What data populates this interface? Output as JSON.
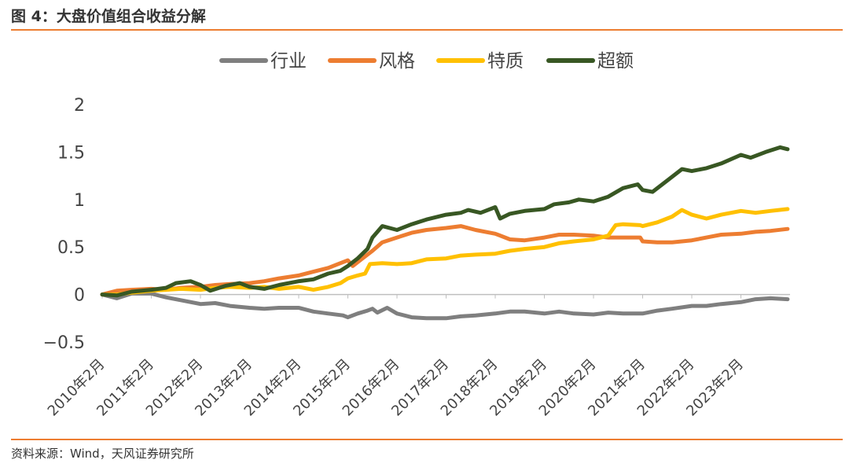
{
  "title": "图 4：大盘价值组合收益分解",
  "source": "资料来源：Wind，天风证券研究所",
  "chart_data": {
    "type": "line",
    "title": "图 4：大盘价值组合收益分解",
    "ylim": [
      -0.5,
      2
    ],
    "yticks": [
      -0.5,
      0,
      0.5,
      1,
      1.5,
      2
    ],
    "ytick_labels": [
      "−0.5",
      "0",
      "0.5",
      "1",
      "1.5",
      "2"
    ],
    "xlim": [
      2010.0,
      2024.0
    ],
    "xticks": [
      2010,
      2011,
      2012,
      2013,
      2014,
      2015,
      2016,
      2017,
      2018,
      2019,
      2020,
      2021,
      2022,
      2023
    ],
    "xtick_labels": [
      "2010年2月",
      "2011年2月",
      "2012年2月",
      "2013年2月",
      "2014年2月",
      "2015年2月",
      "2016年2月",
      "2017年2月",
      "2018年2月",
      "2019年2月",
      "2020年2月",
      "2021年2月",
      "2022年2月",
      "2023年2月"
    ],
    "legend_position": "top",
    "grid": false,
    "series": [
      {
        "name": "行业",
        "color": "#7F7F7F",
        "x": [
          2010.0,
          2010.3,
          2010.6,
          2011.0,
          2011.3,
          2011.6,
          2012.0,
          2012.3,
          2012.6,
          2013.0,
          2013.3,
          2013.6,
          2014.0,
          2014.3,
          2014.6,
          2014.9,
          2015.0,
          2015.2,
          2015.4,
          2015.5,
          2015.6,
          2015.8,
          2016.0,
          2016.3,
          2016.6,
          2017.0,
          2017.3,
          2017.6,
          2018.0,
          2018.3,
          2018.6,
          2019.0,
          2019.3,
          2019.6,
          2020.0,
          2020.3,
          2020.6,
          2021.0,
          2021.3,
          2021.6,
          2022.0,
          2022.3,
          2022.6,
          2023.0,
          2023.3,
          2023.6,
          2023.95
        ],
        "y": [
          0.0,
          -0.04,
          0.01,
          0.01,
          -0.03,
          -0.06,
          -0.1,
          -0.09,
          -0.12,
          -0.14,
          -0.15,
          -0.14,
          -0.14,
          -0.18,
          -0.2,
          -0.22,
          -0.24,
          -0.2,
          -0.17,
          -0.15,
          -0.19,
          -0.14,
          -0.2,
          -0.24,
          -0.25,
          -0.25,
          -0.23,
          -0.22,
          -0.2,
          -0.18,
          -0.18,
          -0.2,
          -0.18,
          -0.2,
          -0.21,
          -0.19,
          -0.2,
          -0.2,
          -0.17,
          -0.15,
          -0.12,
          -0.12,
          -0.1,
          -0.08,
          -0.05,
          -0.04,
          -0.05
        ]
      },
      {
        "name": "风格",
        "color": "#ED7D31",
        "x": [
          2010.0,
          2010.3,
          2010.6,
          2011.0,
          2011.3,
          2011.6,
          2012.0,
          2012.3,
          2012.6,
          2013.0,
          2013.3,
          2013.6,
          2014.0,
          2014.3,
          2014.6,
          2014.85,
          2015.0,
          2015.1,
          2015.3,
          2015.5,
          2015.7,
          2016.0,
          2016.3,
          2016.6,
          2017.0,
          2017.3,
          2017.6,
          2018.0,
          2018.3,
          2018.6,
          2019.0,
          2019.3,
          2019.6,
          2020.0,
          2020.3,
          2020.6,
          2020.95,
          2021.0,
          2021.3,
          2021.6,
          2022.0,
          2022.3,
          2022.6,
          2023.0,
          2023.3,
          2023.6,
          2023.95
        ],
        "y": [
          0.0,
          0.04,
          0.05,
          0.06,
          0.05,
          0.07,
          0.08,
          0.1,
          0.11,
          0.12,
          0.14,
          0.17,
          0.2,
          0.24,
          0.28,
          0.33,
          0.36,
          0.3,
          0.38,
          0.46,
          0.55,
          0.6,
          0.65,
          0.68,
          0.7,
          0.72,
          0.68,
          0.64,
          0.58,
          0.57,
          0.6,
          0.63,
          0.63,
          0.62,
          0.6,
          0.6,
          0.6,
          0.56,
          0.55,
          0.55,
          0.57,
          0.6,
          0.63,
          0.64,
          0.66,
          0.67,
          0.69
        ]
      },
      {
        "name": "特质",
        "color": "#FFC000",
        "x": [
          2010.0,
          2010.3,
          2010.6,
          2011.0,
          2011.3,
          2011.6,
          2012.0,
          2012.3,
          2012.6,
          2013.0,
          2013.3,
          2013.6,
          2014.0,
          2014.3,
          2014.6,
          2014.85,
          2015.0,
          2015.2,
          2015.35,
          2015.45,
          2015.7,
          2016.0,
          2016.3,
          2016.6,
          2017.0,
          2017.3,
          2017.6,
          2018.0,
          2018.3,
          2018.6,
          2019.0,
          2019.3,
          2019.6,
          2020.0,
          2020.3,
          2020.45,
          2020.6,
          2020.95,
          2021.0,
          2021.3,
          2021.6,
          2021.8,
          2022.0,
          2022.3,
          2022.6,
          2023.0,
          2023.3,
          2023.6,
          2023.95
        ],
        "y": [
          0.0,
          0.0,
          0.02,
          0.04,
          0.05,
          0.06,
          0.05,
          0.07,
          0.08,
          0.07,
          0.08,
          0.06,
          0.08,
          0.05,
          0.08,
          0.12,
          0.17,
          0.2,
          0.22,
          0.32,
          0.33,
          0.32,
          0.33,
          0.37,
          0.38,
          0.41,
          0.42,
          0.43,
          0.46,
          0.48,
          0.5,
          0.54,
          0.56,
          0.58,
          0.62,
          0.73,
          0.74,
          0.73,
          0.72,
          0.76,
          0.82,
          0.89,
          0.84,
          0.8,
          0.84,
          0.88,
          0.86,
          0.88,
          0.9
        ]
      },
      {
        "name": "超额",
        "color": "#385723",
        "x": [
          2010.0,
          2010.3,
          2010.6,
          2011.0,
          2011.3,
          2011.5,
          2011.8,
          2012.0,
          2012.2,
          2012.5,
          2012.8,
          2013.0,
          2013.3,
          2013.6,
          2014.0,
          2014.3,
          2014.6,
          2014.85,
          2015.0,
          2015.2,
          2015.4,
          2015.5,
          2015.7,
          2015.85,
          2016.0,
          2016.3,
          2016.6,
          2017.0,
          2017.3,
          2017.45,
          2017.7,
          2018.0,
          2018.1,
          2018.3,
          2018.6,
          2019.0,
          2019.2,
          2019.5,
          2019.7,
          2020.0,
          2020.3,
          2020.6,
          2020.9,
          2021.0,
          2021.2,
          2021.5,
          2021.8,
          2022.0,
          2022.3,
          2022.6,
          2023.0,
          2023.2,
          2023.5,
          2023.8,
          2023.95
        ],
        "y": [
          0.0,
          -0.01,
          0.03,
          0.05,
          0.07,
          0.12,
          0.14,
          0.1,
          0.04,
          0.09,
          0.12,
          0.08,
          0.06,
          0.1,
          0.14,
          0.16,
          0.22,
          0.25,
          0.3,
          0.38,
          0.48,
          0.6,
          0.72,
          0.7,
          0.68,
          0.74,
          0.79,
          0.84,
          0.86,
          0.89,
          0.86,
          0.92,
          0.8,
          0.85,
          0.88,
          0.9,
          0.95,
          0.97,
          1.0,
          0.98,
          1.03,
          1.12,
          1.16,
          1.1,
          1.08,
          1.2,
          1.32,
          1.3,
          1.33,
          1.38,
          1.47,
          1.44,
          1.5,
          1.55,
          1.53
        ]
      }
    ]
  }
}
